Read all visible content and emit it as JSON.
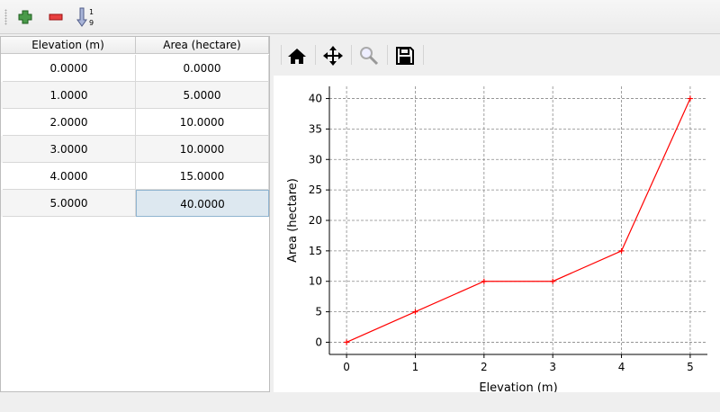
{
  "toolbar": {
    "buttons": [
      {
        "icon": "plus-icon",
        "color": "#3a8a3a"
      },
      {
        "icon": "minus-icon",
        "color": "#e03030"
      },
      {
        "icon": "sort-ascending-icon",
        "label_top": "1",
        "label_bottom": "9"
      }
    ]
  },
  "table": {
    "columns": [
      "Elevation (m)",
      "Area (hectare)"
    ],
    "rows": [
      [
        "0.0000",
        "0.0000"
      ],
      [
        "1.0000",
        "5.0000"
      ],
      [
        "2.0000",
        "10.0000"
      ],
      [
        "3.0000",
        "10.0000"
      ],
      [
        "4.0000",
        "15.0000"
      ],
      [
        "5.0000",
        "40.0000"
      ]
    ],
    "selected_cell": [
      5,
      1
    ]
  },
  "plot_toolbar": {
    "buttons": [
      "home-icon",
      "pan-icon",
      "zoom-icon",
      "save-icon"
    ]
  },
  "chart_data": {
    "type": "line",
    "xlabel": "Elevation (m)",
    "ylabel": "Area (hectare)",
    "x": [
      0,
      1,
      2,
      3,
      4,
      5
    ],
    "y": [
      0,
      5,
      10,
      10,
      15,
      40
    ],
    "xlim": [
      -0.25,
      5.25
    ],
    "ylim": [
      -2,
      42
    ],
    "xticks": [
      0,
      1,
      2,
      3,
      4,
      5
    ],
    "yticks": [
      0,
      5,
      10,
      15,
      20,
      25,
      30,
      35,
      40
    ],
    "grid": true,
    "color": "#ff0000",
    "marker": "+"
  }
}
